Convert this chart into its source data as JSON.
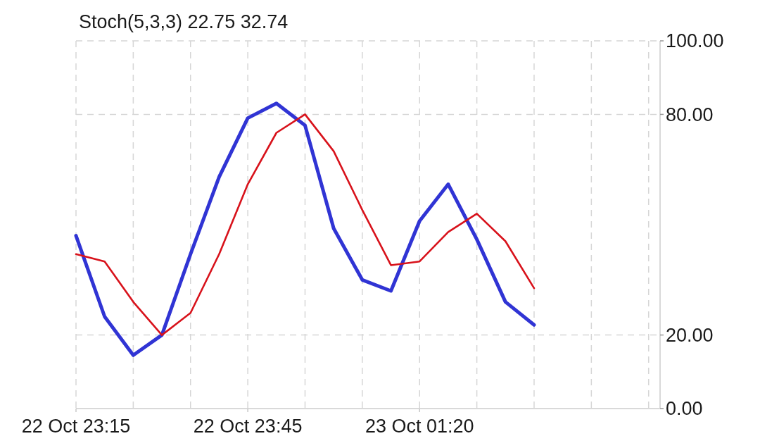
{
  "chart_data": {
    "type": "line",
    "title": "Stoch(5,3,3) 22.75 32.74",
    "categories": [
      "22 Oct 23:15",
      null,
      null,
      null,
      null,
      null,
      "22 Oct 23:45",
      null,
      null,
      null,
      null,
      null,
      "23 Oct 01:20",
      null,
      null,
      null,
      null,
      null,
      null,
      null,
      null
    ],
    "series": [
      {
        "color": "#3034d4",
        "values": [
          47,
          25,
          14.5,
          20,
          42,
          63,
          79,
          83,
          77,
          49,
          35,
          32,
          51,
          61,
          46,
          29,
          22.75,
          null,
          null,
          null,
          null
        ]
      },
      {
        "color": "#d8121b",
        "values": [
          42,
          40,
          29,
          20,
          26,
          42,
          61,
          75,
          80,
          70,
          54,
          39,
          40,
          48,
          53,
          45.5,
          32.74,
          null,
          null,
          null,
          null
        ]
      }
    ],
    "ylim": [
      0,
      100
    ],
    "yticks": [
      {
        "value": 0,
        "label": "0.00"
      },
      {
        "value": 20,
        "label": "20.00"
      },
      {
        "value": 80,
        "label": "80.00"
      },
      {
        "value": 100,
        "label": "100.00"
      }
    ],
    "grid": true
  }
}
